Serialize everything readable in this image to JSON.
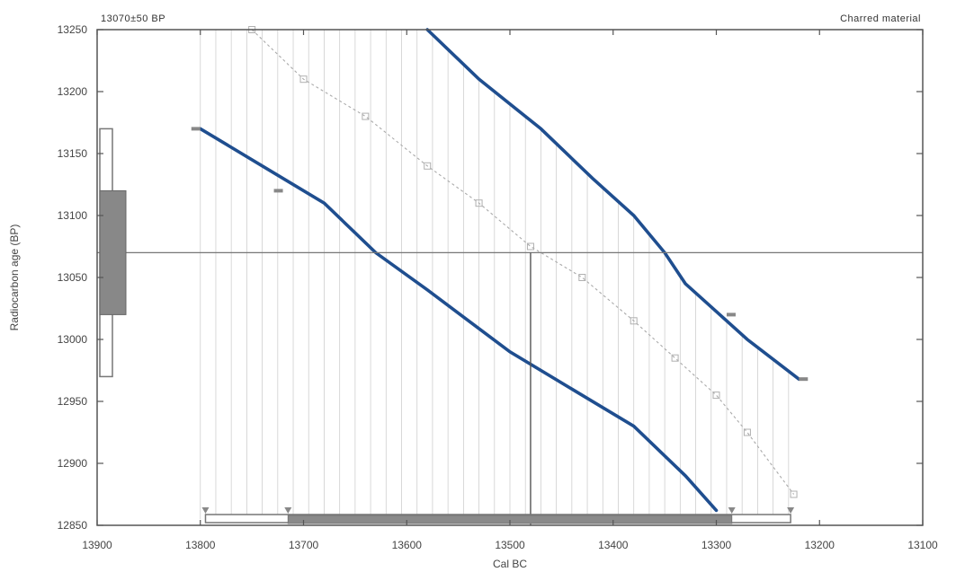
{
  "chart_data": {
    "type": "line",
    "title": "13070±50 BP",
    "subtitle": "Charred material",
    "xlabel": "Cal BC",
    "ylabel": "Radiocarbon age (BP)",
    "xlim": [
      13900,
      13100
    ],
    "ylim": [
      12850,
      13250
    ],
    "x_ticks": [
      13900,
      13800,
      13700,
      13600,
      13500,
      13400,
      13300,
      13200,
      13100
    ],
    "x_tick_labels": [
      "13900",
      "13800",
      "13700",
      "13600",
      "13500",
      "13400",
      "13300",
      "13200",
      "13100"
    ],
    "y_ticks": [
      12850,
      12900,
      12950,
      13000,
      13050,
      13100,
      13150,
      13200,
      13250
    ],
    "y_tick_labels": [
      "12850",
      "12900",
      "12950",
      "13000",
      "13050",
      "13100",
      "13150",
      "13200",
      "13250"
    ],
    "measured_age": 13070,
    "measured_error": 50,
    "calibrated_median": 13480,
    "calibration_curve_upper": [
      [
        13580,
        13250
      ],
      [
        13530,
        13210
      ],
      [
        13470,
        13170
      ],
      [
        13420,
        13130
      ],
      [
        13380,
        13100
      ],
      [
        13350,
        13070
      ],
      [
        13330,
        13045
      ],
      [
        13310,
        13030
      ],
      [
        13270,
        13000
      ],
      [
        13220,
        12968
      ]
    ],
    "calibration_curve_lower": [
      [
        13800,
        13170
      ],
      [
        13740,
        13140
      ],
      [
        13680,
        13110
      ],
      [
        13630,
        13070
      ],
      [
        13580,
        13040
      ],
      [
        13500,
        12990
      ],
      [
        13440,
        12960
      ],
      [
        13380,
        12930
      ],
      [
        13330,
        12890
      ],
      [
        13300,
        12862
      ]
    ],
    "calibration_curve_mean": [
      [
        13750,
        13250
      ],
      [
        13700,
        13210
      ],
      [
        13640,
        13180
      ],
      [
        13580,
        13140
      ],
      [
        13530,
        13110
      ],
      [
        13480,
        13075
      ],
      [
        13430,
        13050
      ],
      [
        13380,
        13015
      ],
      [
        13340,
        12985
      ],
      [
        13300,
        12955
      ],
      [
        13270,
        12925
      ],
      [
        13225,
        12875
      ]
    ],
    "probability_range_68": [
      13715,
      13285
    ],
    "probability_range_95": [
      13795,
      13228
    ]
  }
}
